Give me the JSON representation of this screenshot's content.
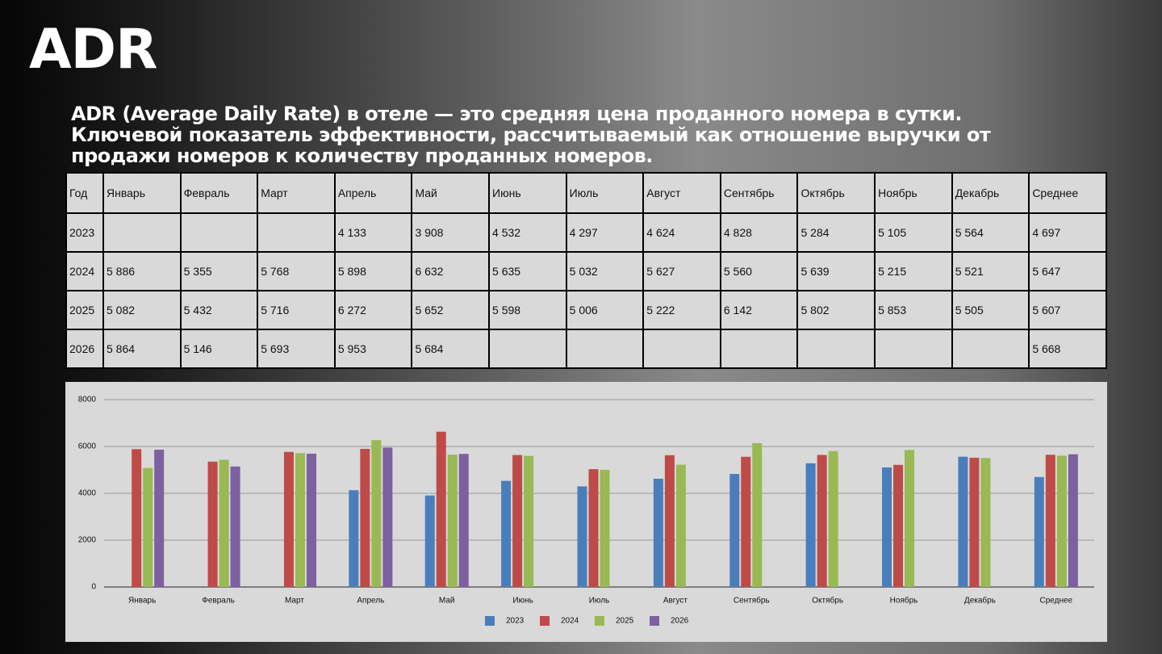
{
  "header": {
    "title": "ADR",
    "description": "ADR (Average Daily Rate) в отеле — это средняя цена проданного номера в сутки. Ключевой показатель эффективности, рассчитываемый как отношение выручки от продажи номеров к количеству проданных номеров."
  },
  "table": {
    "header": [
      "Год",
      "Январь",
      "Февраль",
      "Март",
      "Апрель",
      "Май",
      "Июнь",
      "Июль",
      "Август",
      "Сентябрь",
      "Октябрь",
      "Ноябрь",
      "Декабрь",
      "Среднее"
    ],
    "rows": [
      [
        "2023",
        null,
        null,
        null,
        "4 133",
        "3 908",
        "4 532",
        "4 297",
        "4 624",
        "4 828",
        "5 284",
        "5 105",
        "5 564",
        "4 697"
      ],
      [
        "2024",
        "5 886",
        "5 355",
        "5 768",
        "5 898",
        "6 632",
        "5 635",
        "5 032",
        "5 627",
        "5 560",
        "5 639",
        "5 215",
        "5 521",
        "5 647"
      ],
      [
        "2025",
        "5 082",
        "5 432",
        "5 716",
        "6 272",
        "5 652",
        "5 598",
        "5 006",
        "5 222",
        "6 142",
        "5 802",
        "5 853",
        "5 505",
        "5 607"
      ],
      [
        "2026",
        "5 864",
        "5 146",
        "5 693",
        "5 953",
        "5 684",
        null,
        null,
        null,
        null,
        null,
        null,
        null,
        "5 668"
      ]
    ]
  },
  "chart_data": {
    "type": "bar",
    "categories": [
      "Январь",
      "Февраль",
      "Март",
      "Апрель",
      "Май",
      "Июнь",
      "Июль",
      "Август",
      "Сентябрь",
      "Октябрь",
      "Ноябрь",
      "Декабрь",
      "Среднее"
    ],
    "series": [
      {
        "name": "2023",
        "color": "#4a7ebb",
        "values": [
          null,
          null,
          null,
          4133,
          3908,
          4532,
          4297,
          4624,
          4828,
          5284,
          5105,
          5564,
          4697
        ]
      },
      {
        "name": "2024",
        "color": "#be4b48",
        "values": [
          5886,
          5355,
          5768,
          5898,
          6632,
          5635,
          5032,
          5627,
          5560,
          5639,
          5215,
          5521,
          5647
        ]
      },
      {
        "name": "2025",
        "color": "#98b954",
        "values": [
          5082,
          5432,
          5716,
          6272,
          5652,
          5598,
          5006,
          5222,
          6142,
          5802,
          5853,
          5505,
          5607
        ]
      },
      {
        "name": "2026",
        "color": "#7d60a0",
        "values": [
          5864,
          5146,
          5693,
          5953,
          5684,
          null,
          null,
          null,
          null,
          null,
          null,
          null,
          5668
        ]
      }
    ],
    "ylim": [
      0,
      8000
    ],
    "yticks": [
      0,
      2000,
      4000,
      6000,
      8000
    ],
    "grid": true,
    "legend": "bottom"
  }
}
